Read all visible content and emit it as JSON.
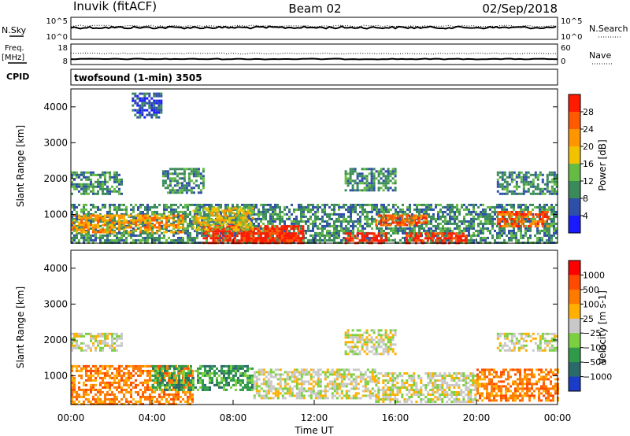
{
  "header": {
    "station": "Inuvik (fitACF)",
    "beam": "Beam 02",
    "date": "02/Sep/2018"
  },
  "summary": {
    "nsky_label": "N.Sky",
    "nsky_ticks": [
      "10^5",
      "10^0"
    ],
    "nsearch_label": "N.Search",
    "nsearch_ticks": [
      "10^5",
      "10^0"
    ],
    "freq_label": "Freq.",
    "freq_unit": "[MHz]",
    "freq_ticks": [
      "18",
      "8"
    ],
    "nave_label": "Nave",
    "nave_ticks": [
      "60",
      "0"
    ],
    "cpid_label": "CPID",
    "mode_text": "twofsound (1-min) 3505"
  },
  "colors": {
    "power_scale": [
      "#1a1aff",
      "#2e4fa8",
      "#3a8a5a",
      "#66bb44",
      "#f2c200",
      "#ff9500",
      "#ff5a00",
      "#ff1a00"
    ],
    "velocity_scale": [
      "#1a3cc8",
      "#2a6a6a",
      "#2f9a4a",
      "#7ad040",
      "#c8c8c8",
      "#ffb000",
      "#ff7a00",
      "#ff4a00",
      "#ff0000"
    ]
  },
  "chart_data": [
    {
      "type": "heatmap",
      "name": "power",
      "ylabel": "Slant Range [km]",
      "yticks": [
        "4000",
        "3000",
        "2000",
        "1000"
      ],
      "ytick_values": [
        4000,
        3000,
        2000,
        1000
      ],
      "ylim": [
        200,
        4500
      ],
      "xlim": [
        0,
        24
      ],
      "colorbar_label": "Power [dB]",
      "colorbar_ticks": [
        "28",
        "24",
        "20",
        "16",
        "12",
        "8",
        "4"
      ],
      "colorbar_range": [
        0,
        32
      ],
      "regions": [
        {
          "x": [
            0.0,
            24.0
          ],
          "y": [
            200,
            1300
          ],
          "level": 2
        },
        {
          "x": [
            0.0,
            5.5
          ],
          "y": [
            500,
            1000
          ],
          "level": 5
        },
        {
          "x": [
            6.5,
            11.5
          ],
          "y": [
            200,
            700
          ],
          "level": 7
        },
        {
          "x": [
            8.5,
            11.0
          ],
          "y": [
            250,
            500
          ],
          "level": 7
        },
        {
          "x": [
            13.5,
            15.5
          ],
          "y": [
            200,
            500
          ],
          "level": 7
        },
        {
          "x": [
            16.5,
            19.5
          ],
          "y": [
            200,
            500
          ],
          "level": 7
        },
        {
          "x": [
            15.0,
            17.5
          ],
          "y": [
            700,
            1000
          ],
          "level": 6
        },
        {
          "x": [
            21.0,
            23.5
          ],
          "y": [
            700,
            1100
          ],
          "level": 6
        },
        {
          "x": [
            6.0,
            9.0
          ],
          "y": [
            600,
            1200
          ],
          "level": 4
        },
        {
          "x": [
            0.0,
            2.5
          ],
          "y": [
            1600,
            2200
          ],
          "level": 2
        },
        {
          "x": [
            4.5,
            6.5
          ],
          "y": [
            1600,
            2300
          ],
          "level": 2
        },
        {
          "x": [
            13.5,
            16.0
          ],
          "y": [
            1700,
            2300
          ],
          "level": 2
        },
        {
          "x": [
            21.0,
            24.0
          ],
          "y": [
            1600,
            2200
          ],
          "level": 2
        },
        {
          "x": [
            3.0,
            4.5
          ],
          "y": [
            3700,
            4400
          ],
          "level": 1
        }
      ]
    },
    {
      "type": "heatmap",
      "name": "velocity",
      "ylabel": "Slant Range [km]",
      "yticks": [
        "4000",
        "3000",
        "2000",
        "1000"
      ],
      "ytick_values": [
        4000,
        3000,
        2000,
        1000
      ],
      "ylim": [
        200,
        4500
      ],
      "xlim": [
        0,
        24
      ],
      "xlabel": "Time UT",
      "xticks": [
        "00:00",
        "04:00",
        "08:00",
        "12:00",
        "16:00",
        "20:00",
        "00:00"
      ],
      "xtick_values": [
        0,
        4,
        8,
        12,
        16,
        20,
        24
      ],
      "colorbar_label": "Velocity [m s-1]",
      "colorbar_ticks": [
        "1000",
        "500",
        "100",
        "25",
        "−25",
        "−100",
        "−500",
        "−1000"
      ],
      "regions": [
        {
          "x": [
            0.0,
            6.0
          ],
          "y": [
            200,
            1300
          ],
          "level": 6
        },
        {
          "x": [
            4.0,
            9.0
          ],
          "y": [
            600,
            1300
          ],
          "level": 2
        },
        {
          "x": [
            9.0,
            15.0
          ],
          "y": [
            400,
            1200
          ],
          "level": 4
        },
        {
          "x": [
            15.0,
            20.0
          ],
          "y": [
            300,
            1100
          ],
          "level": 4
        },
        {
          "x": [
            20.0,
            24.0
          ],
          "y": [
            300,
            1200
          ],
          "level": 6
        },
        {
          "x": [
            0.0,
            2.5
          ],
          "y": [
            1700,
            2200
          ],
          "level": 4
        },
        {
          "x": [
            13.5,
            16.0
          ],
          "y": [
            1600,
            2300
          ],
          "level": 4
        },
        {
          "x": [
            21.0,
            24.0
          ],
          "y": [
            1700,
            2200
          ],
          "level": 4
        }
      ]
    }
  ]
}
